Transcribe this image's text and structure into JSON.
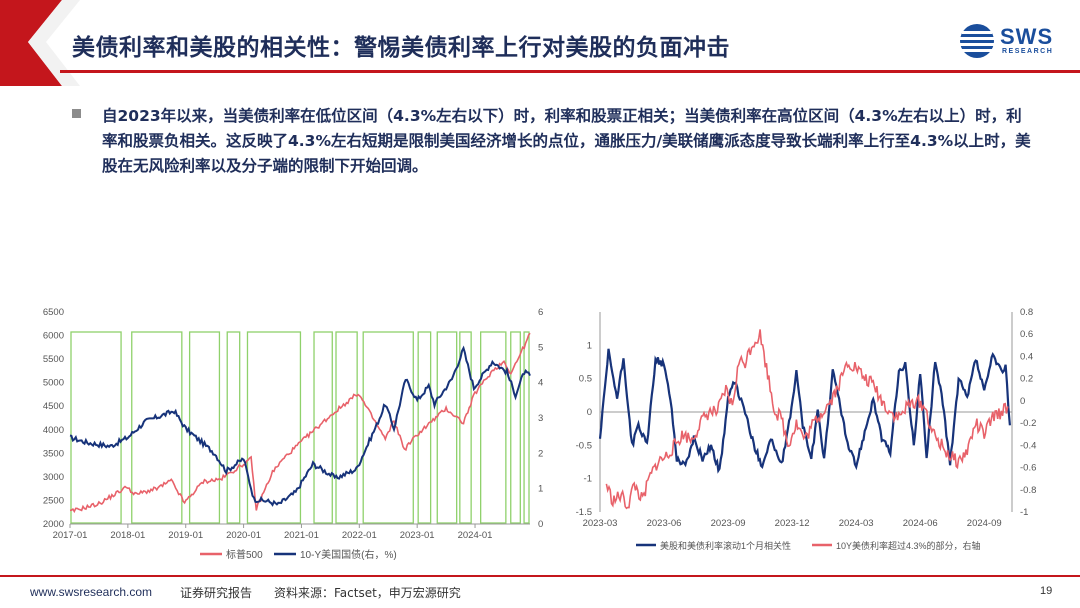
{
  "header": {
    "title": "美债利率和美股的相关性：警惕美债利率上行对美股的负面冲击",
    "logo_text": "SWS",
    "logo_sub": "RESEARCH"
  },
  "bullet": {
    "text": "自2023年以来，当美债利率在低位区间（4.3%左右以下）时，利率和股票正相关；当美债利率在高位区间（4.3%左右以上）时，利率和股票负相关。这反映了4.3%左右短期是限制美国经济增长的点位，通胀压力/美联储鹰派态度导致长端利率上行至4.3%以上时，美股在无风险利率以及分子端的限制下开始回调。"
  },
  "colors": {
    "accent_red": "#c4161c",
    "navy": "#1f2e5a",
    "spx_red": "#e8626a",
    "yield_navy": "#17337a",
    "box_green": "#8fd16b"
  },
  "chart_data": [
    {
      "type": "line",
      "x_ticks": [
        "2017-01",
        "2018-01",
        "2019-01",
        "2020-01",
        "2021-01",
        "2022-01",
        "2023-01",
        "2024-01"
      ],
      "y_left_ticks": [
        "2000",
        "2500",
        "3000",
        "3500",
        "4000",
        "4500",
        "5000",
        "5500",
        "6000",
        "6500"
      ],
      "y_right_ticks": [
        "0",
        "1",
        "2",
        "3",
        "4",
        "5",
        "6"
      ],
      "ylim_left": [
        2000,
        6500
      ],
      "ylim_right": [
        0,
        6
      ],
      "xlim": [
        2017.0,
        2024.95
      ],
      "series": [
        {
          "name": "标普500",
          "axis": "left",
          "color": "#e8626a",
          "points": [
            [
              2017.0,
              2260
            ],
            [
              2017.5,
              2430
            ],
            [
              2018.0,
              2800
            ],
            [
              2018.1,
              2620
            ],
            [
              2018.5,
              2750
            ],
            [
              2018.75,
              2920
            ],
            [
              2018.98,
              2450
            ],
            [
              2019.3,
              2900
            ],
            [
              2019.6,
              2950
            ],
            [
              2019.95,
              3230
            ],
            [
              2020.13,
              3380
            ],
            [
              2020.22,
              2320
            ],
            [
              2020.5,
              3100
            ],
            [
              2020.7,
              3400
            ],
            [
              2021.0,
              3750
            ],
            [
              2021.5,
              4300
            ],
            [
              2021.98,
              4780
            ],
            [
              2022.45,
              3800
            ],
            [
              2022.6,
              4200
            ],
            [
              2022.78,
              3580
            ],
            [
              2023.0,
              3900
            ],
            [
              2023.5,
              4450
            ],
            [
              2023.8,
              4150
            ],
            [
              2024.0,
              4780
            ],
            [
              2024.3,
              5250
            ],
            [
              2024.5,
              5450
            ],
            [
              2024.62,
              5200
            ],
            [
              2024.9,
              5900
            ],
            [
              2024.95,
              6050
            ]
          ]
        },
        {
          "name": "10-Y美国国债(右，%)",
          "axis": "right",
          "color": "#17337a",
          "points": [
            [
              2017.0,
              2.45
            ],
            [
              2017.3,
              2.3
            ],
            [
              2017.7,
              2.2
            ],
            [
              2018.0,
              2.45
            ],
            [
              2018.3,
              2.9
            ],
            [
              2018.8,
              3.2
            ],
            [
              2019.0,
              2.7
            ],
            [
              2019.5,
              2.0
            ],
            [
              2019.7,
              1.5
            ],
            [
              2020.0,
              1.85
            ],
            [
              2020.18,
              0.7
            ],
            [
              2020.4,
              0.65
            ],
            [
              2020.6,
              0.55
            ],
            [
              2020.9,
              0.9
            ],
            [
              2021.2,
              1.7
            ],
            [
              2021.6,
              1.3
            ],
            [
              2021.95,
              1.55
            ],
            [
              2022.3,
              2.8
            ],
            [
              2022.45,
              3.4
            ],
            [
              2022.6,
              2.7
            ],
            [
              2022.8,
              4.1
            ],
            [
              2023.0,
              3.5
            ],
            [
              2023.2,
              3.9
            ],
            [
              2023.3,
              3.4
            ],
            [
              2023.6,
              4.1
            ],
            [
              2023.8,
              4.95
            ],
            [
              2023.98,
              3.85
            ],
            [
              2024.3,
              4.6
            ],
            [
              2024.55,
              4.3
            ],
            [
              2024.7,
              3.65
            ],
            [
              2024.85,
              4.3
            ],
            [
              2024.95,
              4.2
            ]
          ]
        }
      ],
      "highlight_boxes": [
        [
          2017.0,
          2017.9
        ],
        [
          2018.05,
          2018.95
        ],
        [
          2019.05,
          2019.6
        ],
        [
          2019.7,
          2019.95
        ],
        [
          2020.05,
          2021.0
        ],
        [
          2021.2,
          2021.55
        ],
        [
          2021.58,
          2021.98
        ],
        [
          2022.05,
          2022.95
        ],
        [
          2023.0,
          2023.25
        ],
        [
          2023.33,
          2023.7
        ],
        [
          2023.72,
          2023.95
        ],
        [
          2024.08,
          2024.55
        ],
        [
          2024.6,
          2024.8
        ],
        [
          2024.83,
          2024.95
        ]
      ],
      "legend": [
        "标普500",
        "10-Y美国国债(右，%)"
      ],
      "legend_placement": "bottom"
    },
    {
      "type": "line",
      "x_ticks": [
        "2023-03",
        "2023-06",
        "2023-09",
        "2023-12",
        "2024-03",
        "2024-06",
        "2024-09"
      ],
      "y_left_ticks": [
        "-1.5",
        "-1",
        "-0.5",
        "0",
        "0.5",
        "1"
      ],
      "y_right_ticks": [
        "-1",
        "-0.8",
        "-0.6",
        "-0.4",
        "-0.2",
        "0",
        "0.2",
        "0.4",
        "0.6",
        "0.8"
      ],
      "ylim_left": [
        -1.5,
        1.5
      ],
      "ylim_right": [
        -1.0,
        0.8
      ],
      "xlim": [
        0,
        19.3
      ],
      "series": [
        {
          "name": "美股和美债利率滚动1个月相关性",
          "axis": "left",
          "color": "#17337a",
          "points": [
            [
              0,
              -0.4
            ],
            [
              0.4,
              0.9
            ],
            [
              0.8,
              0.2
            ],
            [
              1.1,
              0.8
            ],
            [
              1.5,
              -0.5
            ],
            [
              1.8,
              -0.2
            ],
            [
              2.2,
              -0.5
            ],
            [
              2.6,
              0.8
            ],
            [
              3.0,
              0.7
            ],
            [
              3.3,
              0.2
            ],
            [
              3.6,
              -0.7
            ],
            [
              4.0,
              -0.8
            ],
            [
              4.4,
              -0.4
            ],
            [
              4.8,
              -0.7
            ],
            [
              5.2,
              -0.5
            ],
            [
              5.6,
              -0.9
            ],
            [
              6.0,
              0.2
            ],
            [
              6.3,
              0.45
            ],
            [
              6.8,
              0.0
            ],
            [
              7.2,
              -0.5
            ],
            [
              7.6,
              -0.8
            ],
            [
              8.0,
              -0.4
            ],
            [
              8.5,
              -0.8
            ],
            [
              8.8,
              -0.3
            ],
            [
              9.2,
              0.6
            ],
            [
              9.5,
              -0.2
            ],
            [
              9.9,
              -0.7
            ],
            [
              10.2,
              0.0
            ],
            [
              10.5,
              -0.7
            ],
            [
              10.9,
              0.6
            ],
            [
              11.2,
              0.2
            ],
            [
              11.6,
              -0.5
            ],
            [
              12.0,
              -0.8
            ],
            [
              12.4,
              -0.3
            ],
            [
              12.8,
              0.2
            ],
            [
              13.2,
              -0.4
            ],
            [
              13.6,
              -0.6
            ],
            [
              14.0,
              0.6
            ],
            [
              14.3,
              0.7
            ],
            [
              14.7,
              -0.5
            ],
            [
              15.0,
              0.6
            ],
            [
              15.3,
              -0.7
            ],
            [
              15.7,
              0.75
            ],
            [
              16.0,
              0.3
            ],
            [
              16.4,
              -0.8
            ],
            [
              16.8,
              0.5
            ],
            [
              17.2,
              0.2
            ],
            [
              17.6,
              0.8
            ],
            [
              18.0,
              0.3
            ],
            [
              18.4,
              0.85
            ],
            [
              18.8,
              0.6
            ],
            [
              19.0,
              0.7
            ],
            [
              19.2,
              -0.2
            ]
          ]
        },
        {
          "name": "10Y美债利率超过4.3%的部分，右轴",
          "axis": "right",
          "color": "#e8626a",
          "points": [
            [
              0.3,
              -0.75
            ],
            [
              0.6,
              -0.9
            ],
            [
              1.0,
              -0.85
            ],
            [
              1.3,
              -0.95
            ],
            [
              1.6,
              -0.75
            ],
            [
              2.0,
              -0.9
            ],
            [
              2.3,
              -0.7
            ],
            [
              2.7,
              -0.55
            ],
            [
              3.1,
              -0.5
            ],
            [
              3.5,
              -0.4
            ],
            [
              3.9,
              -0.3
            ],
            [
              4.3,
              -0.35
            ],
            [
              4.7,
              -0.2
            ],
            [
              5.1,
              -0.1
            ],
            [
              5.5,
              -0.1
            ],
            [
              5.9,
              0.1
            ],
            [
              6.2,
              -0.05
            ],
            [
              6.5,
              0.35
            ],
            [
              6.8,
              0.35
            ],
            [
              7.1,
              0.5
            ],
            [
              7.5,
              0.6
            ],
            [
              7.8,
              0.3
            ],
            [
              8.2,
              -0.1
            ],
            [
              8.5,
              -0.15
            ],
            [
              8.8,
              -0.4
            ],
            [
              9.2,
              -0.2
            ],
            [
              9.6,
              -0.35
            ],
            [
              10.0,
              -0.2
            ],
            [
              10.4,
              -0.1
            ],
            [
              10.8,
              0.0
            ],
            [
              11.2,
              0.15
            ],
            [
              11.6,
              0.35
            ],
            [
              12.0,
              0.3
            ],
            [
              12.4,
              0.2
            ],
            [
              12.8,
              0.15
            ],
            [
              13.2,
              0.0
            ],
            [
              13.6,
              -0.1
            ],
            [
              14.0,
              -0.15
            ],
            [
              14.4,
              -0.05
            ],
            [
              14.8,
              0.0
            ],
            [
              15.2,
              -0.05
            ],
            [
              15.6,
              -0.3
            ],
            [
              16.0,
              -0.4
            ],
            [
              16.4,
              -0.5
            ],
            [
              16.8,
              -0.55
            ],
            [
              17.2,
              -0.45
            ],
            [
              17.6,
              -0.2
            ],
            [
              18.0,
              -0.3
            ],
            [
              18.4,
              -0.15
            ],
            [
              18.8,
              -0.1
            ],
            [
              19.1,
              -0.05
            ]
          ]
        }
      ],
      "legend": [
        "美股和美债利率滚动1个月相关性",
        "10Y美债利率超过4.3%的部分，右轴"
      ],
      "legend_placement": "bottom"
    }
  ],
  "footer": {
    "url": "www.swsresearch.com",
    "report": "证券研究报告",
    "source": "资料来源：Factset，申万宏源研究",
    "page": "19"
  }
}
